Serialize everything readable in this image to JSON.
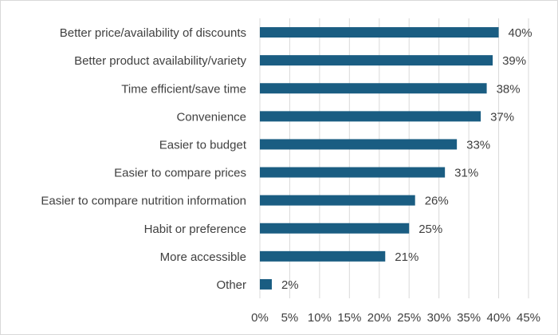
{
  "chart_data": {
    "type": "bar",
    "orientation": "horizontal",
    "categories": [
      "Better price/availability of discounts",
      "Better product availability/variety",
      "Time efficient/save time",
      "Convenience",
      "Easier to budget",
      "Easier to compare prices",
      "Easier to compare nutrition information",
      "Habit or preference",
      "More accessible",
      "Other"
    ],
    "values": [
      40,
      39,
      38,
      37,
      33,
      31,
      26,
      25,
      21,
      2
    ],
    "data_labels": [
      "40%",
      "39%",
      "38%",
      "37%",
      "33%",
      "31%",
      "26%",
      "25%",
      "21%",
      "2%"
    ],
    "x_ticks": [
      0,
      5,
      10,
      15,
      20,
      25,
      30,
      35,
      40,
      45
    ],
    "x_tick_labels": [
      "0%",
      "5%",
      "10%",
      "15%",
      "20%",
      "25%",
      "30%",
      "35%",
      "40%",
      "45%"
    ],
    "xlim": [
      0,
      45
    ],
    "unit": "%",
    "grid": "vertical",
    "legend": "none",
    "title": "",
    "xlabel": "",
    "ylabel": "",
    "colors": {
      "bar": "#1a5d82",
      "grid": "#d9d9d9",
      "text": "#404040",
      "frame": "#d9d9d9"
    }
  }
}
